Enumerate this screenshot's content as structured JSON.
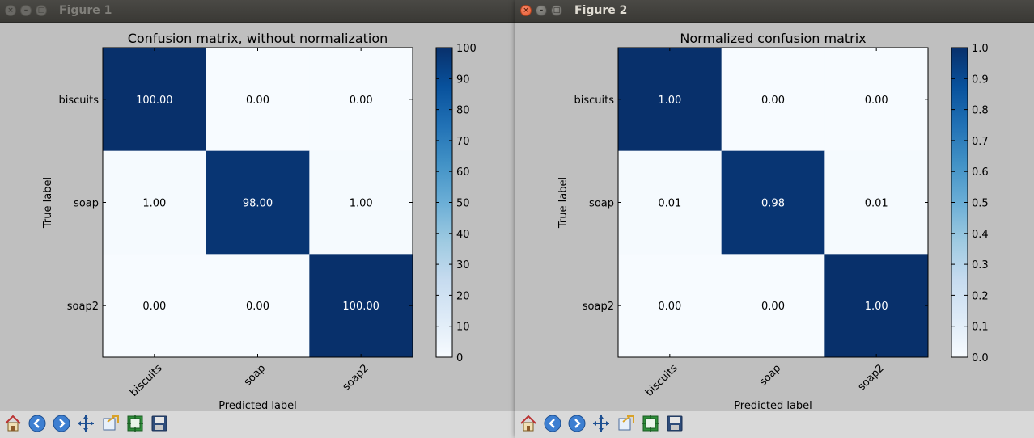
{
  "windows": [
    {
      "title": "Figure 1",
      "state": "inactive",
      "figure": {
        "title": "Confusion matrix, without normalization",
        "xlabel": "Predicted label",
        "ylabel": "True label",
        "x_tick_labels": [
          "biscuits",
          "soap",
          "soap2"
        ],
        "y_tick_labels": [
          "biscuits",
          "soap",
          "soap2"
        ],
        "colorbar_ticks": [
          "0",
          "10",
          "20",
          "30",
          "40",
          "50",
          "60",
          "70",
          "80",
          "90",
          "100"
        ],
        "cell_text": [
          [
            "100.00",
            "0.00",
            "0.00"
          ],
          [
            "1.00",
            "98.00",
            "1.00"
          ],
          [
            "0.00",
            "0.00",
            "100.00"
          ]
        ]
      }
    },
    {
      "title": "Figure 2",
      "state": "active",
      "figure": {
        "title": "Normalized confusion matrix",
        "xlabel": "Predicted label",
        "ylabel": "True label",
        "x_tick_labels": [
          "biscuits",
          "soap",
          "soap2"
        ],
        "y_tick_labels": [
          "biscuits",
          "soap",
          "soap2"
        ],
        "colorbar_ticks": [
          "0.0",
          "0.1",
          "0.2",
          "0.3",
          "0.4",
          "0.5",
          "0.6",
          "0.7",
          "0.8",
          "0.9",
          "1.0"
        ],
        "cell_text": [
          [
            "1.00",
            "0.00",
            "0.00"
          ],
          [
            "0.01",
            "0.98",
            "0.01"
          ],
          [
            "0.00",
            "0.00",
            "1.00"
          ]
        ]
      }
    }
  ],
  "chart_data": [
    {
      "type": "heatmap",
      "title": "Confusion matrix, without normalization",
      "xlabel": "Predicted label",
      "ylabel": "True label",
      "x": [
        "biscuits",
        "soap",
        "soap2"
      ],
      "y": [
        "biscuits",
        "soap",
        "soap2"
      ],
      "values": [
        [
          100,
          0,
          0
        ],
        [
          1,
          98,
          1
        ],
        [
          0,
          0,
          100
        ]
      ],
      "colorbar_range": [
        0,
        100
      ],
      "colormap": "Blues"
    },
    {
      "type": "heatmap",
      "title": "Normalized confusion matrix",
      "xlabel": "Predicted label",
      "ylabel": "True label",
      "x": [
        "biscuits",
        "soap",
        "soap2"
      ],
      "y": [
        "biscuits",
        "soap",
        "soap2"
      ],
      "values": [
        [
          1.0,
          0.0,
          0.0
        ],
        [
          0.01,
          0.98,
          0.01
        ],
        [
          0.0,
          0.0,
          1.0
        ]
      ],
      "colorbar_range": [
        0,
        1
      ],
      "colormap": "Blues"
    }
  ],
  "toolbar": {
    "icons": [
      "home-icon",
      "back-arrow-icon",
      "forward-arrow-icon",
      "pan-icon",
      "zoom-icon",
      "subplots-icon",
      "save-icon"
    ]
  },
  "colors": {
    "cmap_low": "#f7fbff",
    "cmap_high": "#08306b",
    "text_dark_cell": "#ffffff",
    "text_light_cell": "#000000",
    "figure_bg": "#bfbfbf",
    "toolbar_bg": "#d9d9d9"
  }
}
